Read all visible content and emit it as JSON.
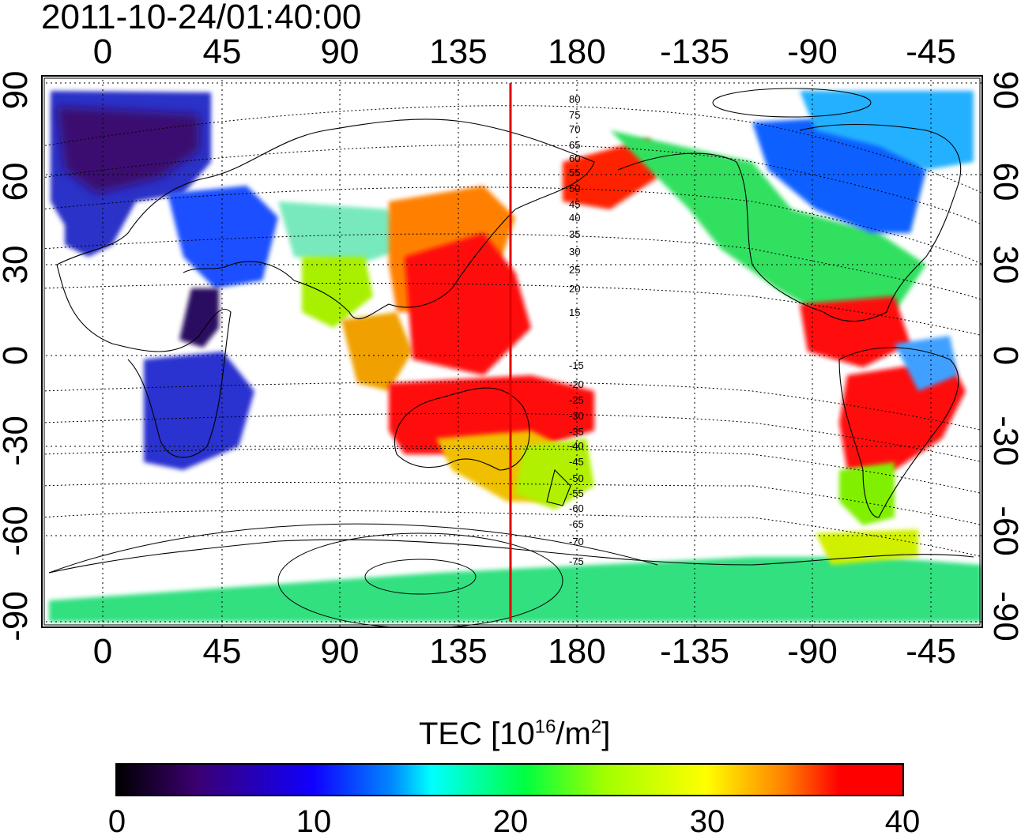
{
  "title": "2011-10-24/01:40:00",
  "lon_ticks": [
    "0",
    "45",
    "90",
    "135",
    "180",
    "-135",
    "-90",
    "-45"
  ],
  "lat_ticks": [
    "90",
    "60",
    "30",
    "0",
    "-30",
    "-60",
    "-90"
  ],
  "magnetic_latitude_labels": [
    "80",
    "75",
    "70",
    "65",
    "60",
    "55",
    "50",
    "45",
    "40",
    "35",
    "30",
    "25",
    "20",
    "15",
    "-15",
    "-20",
    "-25",
    "-30",
    "-35",
    "-40",
    "-45",
    "-50",
    "-55",
    "-60",
    "-65",
    "-70",
    "-75"
  ],
  "colorbar": {
    "label_prefix": "TEC  [10",
    "label_exp1": "16",
    "label_mid": "/m",
    "label_exp2": "2",
    "label_suffix": "]",
    "ticks": [
      "0",
      "10",
      "20",
      "30",
      "40"
    ],
    "colors": [
      "#000000",
      "#1000ff",
      "#00ffff",
      "#00ff40",
      "#ffff00",
      "#ff0000"
    ]
  },
  "colors": {
    "terminator_line": "#e00000",
    "coastlines": "#000000"
  }
}
